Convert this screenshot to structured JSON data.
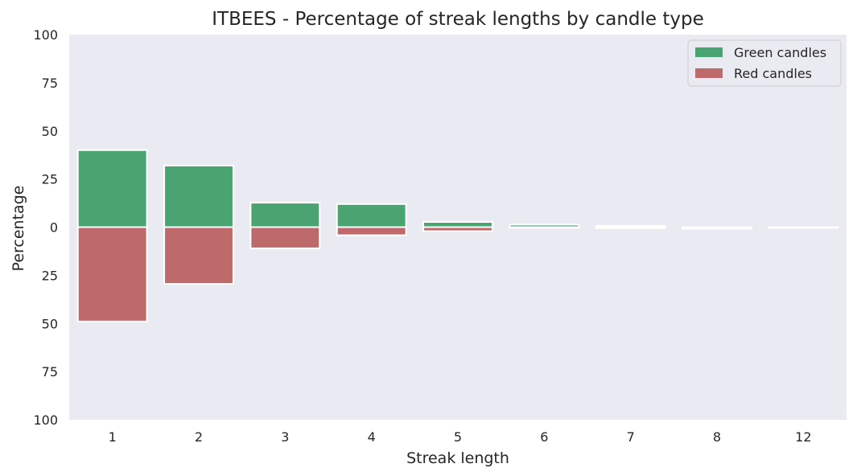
{
  "chart_data": {
    "type": "bar",
    "title": "ITBEES - Percentage of streak lengths by candle type",
    "xlabel": "Streak length",
    "ylabel": "Percentage",
    "categories": [
      "1",
      "2",
      "3",
      "4",
      "5",
      "6",
      "7",
      "8",
      "12"
    ],
    "series": [
      {
        "name": "Green candles",
        "color": "#4aa471",
        "direction": "up",
        "values": [
          40,
          32,
          12.7,
          12,
          2.7,
          1.3,
          0.7,
          0,
          0
        ]
      },
      {
        "name": "Red candles",
        "color": "#bf6a6a",
        "direction": "down",
        "values": [
          49,
          29.5,
          11,
          4.2,
          2.1,
          0.4,
          0.6,
          0.8,
          0.4
        ]
      }
    ],
    "ylim": [
      -100,
      100
    ],
    "yticks": [
      -100,
      -75,
      -50,
      -25,
      0,
      25,
      50,
      75,
      100
    ],
    "ytick_labels": [
      "100",
      "75",
      "50",
      "25",
      "0",
      "25",
      "50",
      "75",
      "100"
    ],
    "grid": false,
    "legend_position": "top-right",
    "background": "#eaeaf2"
  }
}
